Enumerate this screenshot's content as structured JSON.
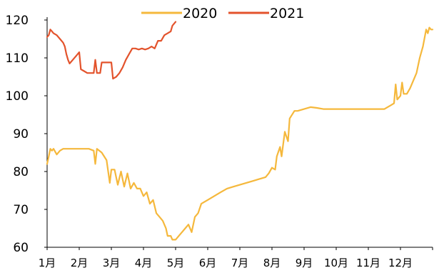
{
  "chart_data": {
    "type": "line",
    "title": "",
    "xlabel": "",
    "ylabel": "",
    "ylim": [
      60,
      120
    ],
    "yticks": [
      60,
      70,
      80,
      90,
      100,
      110,
      120
    ],
    "categories": [
      "1月",
      "2月",
      "3月",
      "4月",
      "5月",
      "6月",
      "7月",
      "8月",
      "9月",
      "10月",
      "11月",
      "12月"
    ],
    "xlim_months": [
      1,
      13
    ],
    "grid": false,
    "legend": "top-center",
    "series": [
      {
        "name": "2020",
        "color": "#F5B83C",
        "points": [
          [
            1.0,
            82
          ],
          [
            1.05,
            84
          ],
          [
            1.1,
            86
          ],
          [
            1.15,
            85.5
          ],
          [
            1.2,
            86
          ],
          [
            1.3,
            84.5
          ],
          [
            1.4,
            85.5
          ],
          [
            1.5,
            86
          ],
          [
            1.7,
            86
          ],
          [
            1.9,
            86
          ],
          [
            2.1,
            86
          ],
          [
            2.3,
            86
          ],
          [
            2.45,
            85.5
          ],
          [
            2.5,
            82
          ],
          [
            2.55,
            86
          ],
          [
            2.7,
            85
          ],
          [
            2.85,
            83
          ],
          [
            2.95,
            77
          ],
          [
            3.0,
            80.5
          ],
          [
            3.1,
            80.5
          ],
          [
            3.2,
            76.5
          ],
          [
            3.3,
            80
          ],
          [
            3.4,
            76
          ],
          [
            3.5,
            79.5
          ],
          [
            3.6,
            75.5
          ],
          [
            3.7,
            77
          ],
          [
            3.8,
            75.5
          ],
          [
            3.9,
            75.5
          ],
          [
            4.0,
            73.5
          ],
          [
            4.1,
            74.5
          ],
          [
            4.2,
            71.5
          ],
          [
            4.3,
            72.5
          ],
          [
            4.4,
            69
          ],
          [
            4.5,
            68
          ],
          [
            4.6,
            67
          ],
          [
            4.7,
            65
          ],
          [
            4.75,
            63
          ],
          [
            4.85,
            63
          ],
          [
            4.9,
            62
          ],
          [
            5.0,
            62
          ],
          [
            5.1,
            63
          ],
          [
            5.2,
            64
          ],
          [
            5.3,
            65
          ],
          [
            5.4,
            66
          ],
          [
            5.5,
            64
          ],
          [
            5.6,
            68
          ],
          [
            5.7,
            69
          ],
          [
            5.8,
            71.5
          ],
          [
            6.0,
            72.5
          ],
          [
            6.2,
            73.5
          ],
          [
            6.4,
            74.5
          ],
          [
            6.6,
            75.5
          ],
          [
            6.8,
            76
          ],
          [
            7.0,
            76.5
          ],
          [
            7.2,
            77
          ],
          [
            7.4,
            77.5
          ],
          [
            7.6,
            78
          ],
          [
            7.8,
            78.5
          ],
          [
            7.9,
            79.5
          ],
          [
            8.0,
            81
          ],
          [
            8.1,
            80.5
          ],
          [
            8.15,
            84
          ],
          [
            8.25,
            86.5
          ],
          [
            8.3,
            84
          ],
          [
            8.4,
            90.5
          ],
          [
            8.5,
            88
          ],
          [
            8.55,
            94
          ],
          [
            8.7,
            96
          ],
          [
            8.8,
            96
          ],
          [
            9.0,
            96.5
          ],
          [
            9.2,
            97
          ],
          [
            9.4,
            96.8
          ],
          [
            9.6,
            96.5
          ],
          [
            9.8,
            96.5
          ],
          [
            10.0,
            96.5
          ],
          [
            10.3,
            96.5
          ],
          [
            10.6,
            96.5
          ],
          [
            10.9,
            96.5
          ],
          [
            11.1,
            96.5
          ],
          [
            11.3,
            96.5
          ],
          [
            11.5,
            96.5
          ],
          [
            11.7,
            97.5
          ],
          [
            11.8,
            98
          ],
          [
            11.85,
            103
          ],
          [
            11.9,
            99
          ],
          [
            12.0,
            100
          ],
          [
            12.05,
            103.5
          ],
          [
            12.1,
            100.5
          ],
          [
            12.2,
            100.5
          ],
          [
            12.3,
            102
          ],
          [
            12.4,
            104
          ],
          [
            12.5,
            106
          ],
          [
            12.6,
            110
          ],
          [
            12.7,
            113
          ],
          [
            12.8,
            117.5
          ],
          [
            12.85,
            116.5
          ],
          [
            12.9,
            118
          ],
          [
            12.95,
            117.5
          ],
          [
            13.0,
            117.5
          ]
        ]
      },
      {
        "name": "2021",
        "color": "#E3532C",
        "points": [
          [
            1.0,
            115.5
          ],
          [
            1.05,
            116
          ],
          [
            1.1,
            117.5
          ],
          [
            1.15,
            117
          ],
          [
            1.2,
            116.5
          ],
          [
            1.3,
            116
          ],
          [
            1.4,
            115
          ],
          [
            1.5,
            114
          ],
          [
            1.55,
            113
          ],
          [
            1.6,
            111
          ],
          [
            1.65,
            109.5
          ],
          [
            1.7,
            108.5
          ],
          [
            1.8,
            109.5
          ],
          [
            1.9,
            110.5
          ],
          [
            2.0,
            111.5
          ],
          [
            2.05,
            107
          ],
          [
            2.15,
            106.5
          ],
          [
            2.25,
            106
          ],
          [
            2.35,
            106
          ],
          [
            2.45,
            106
          ],
          [
            2.5,
            109.5
          ],
          [
            2.55,
            106
          ],
          [
            2.65,
            106
          ],
          [
            2.7,
            108.8
          ],
          [
            2.9,
            108.8
          ],
          [
            3.0,
            108.8
          ],
          [
            3.05,
            104.5
          ],
          [
            3.15,
            105
          ],
          [
            3.25,
            106
          ],
          [
            3.35,
            107.5
          ],
          [
            3.45,
            109.5
          ],
          [
            3.55,
            111
          ],
          [
            3.65,
            112.5
          ],
          [
            3.75,
            112.5
          ],
          [
            3.85,
            112.2
          ],
          [
            3.95,
            112.5
          ],
          [
            4.05,
            112.2
          ],
          [
            4.15,
            112.5
          ],
          [
            4.25,
            113
          ],
          [
            4.35,
            112.5
          ],
          [
            4.45,
            114.5
          ],
          [
            4.55,
            114.5
          ],
          [
            4.65,
            116
          ],
          [
            4.75,
            116.5
          ],
          [
            4.85,
            117
          ],
          [
            4.9,
            118.5
          ],
          [
            5.0,
            119.5
          ]
        ]
      }
    ]
  }
}
